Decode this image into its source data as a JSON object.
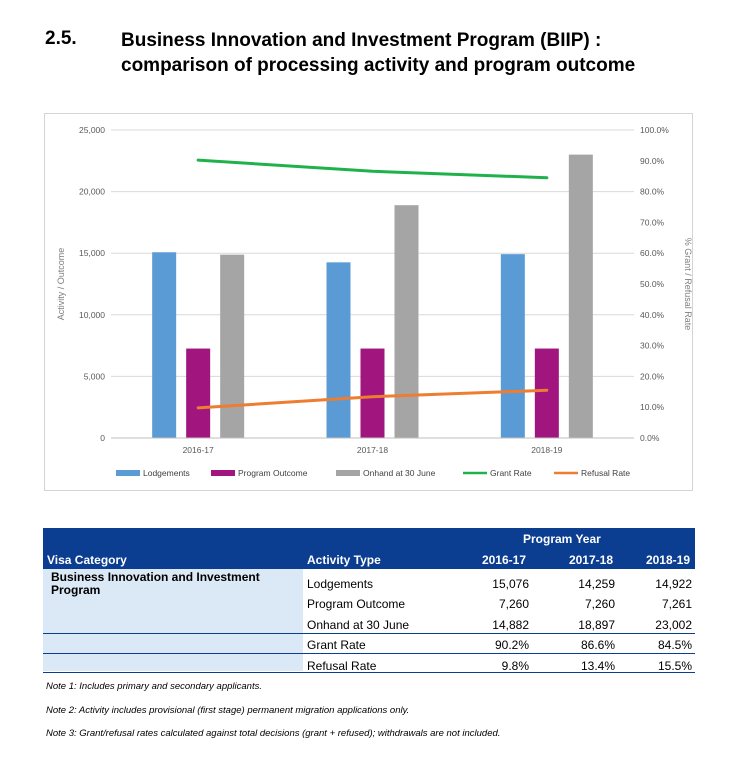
{
  "section": {
    "number": "2.5.",
    "title_line1": "Business Innovation and Investment Program (BIIP) :",
    "title_line2": "comparison of processing activity and program outcome"
  },
  "chart_data": {
    "type": "bar",
    "categories": [
      "2016-17",
      "2017-18",
      "2018-19"
    ],
    "series": [
      {
        "name": "Lodgements",
        "kind": "bar",
        "axis": "left",
        "color": "#5b9bd5",
        "values": [
          15076,
          14259,
          14922
        ]
      },
      {
        "name": "Program Outcome",
        "kind": "bar",
        "axis": "left",
        "color": "#a0157e",
        "values": [
          7260,
          7260,
          7261
        ]
      },
      {
        "name": "Onhand at 30 June",
        "kind": "bar",
        "axis": "left",
        "color": "#a5a5a5",
        "values": [
          14882,
          18897,
          23002
        ]
      },
      {
        "name": "Grant Rate",
        "kind": "line",
        "axis": "right",
        "color": "#1fb24a",
        "values": [
          90.2,
          86.6,
          84.5
        ]
      },
      {
        "name": "Refusal Rate",
        "kind": "line",
        "axis": "right",
        "color": "#ed7d31",
        "values": [
          9.8,
          13.4,
          15.5
        ]
      }
    ],
    "ylabel": "Activity / Outcome",
    "y2label": "% Grant / Refusal Rate",
    "ylim": [
      0,
      25000
    ],
    "y2lim": [
      0,
      100
    ],
    "yticks": [
      "0",
      "5,000",
      "10,000",
      "15,000",
      "20,000",
      "25,000"
    ],
    "y2ticks": [
      "0.0%",
      "10.0%",
      "20.0%",
      "30.0%",
      "40.0%",
      "50.0%",
      "60.0%",
      "70.0%",
      "80.0%",
      "90.0%",
      "100.0%"
    ],
    "grid": true,
    "legend_position": "bottom"
  },
  "table": {
    "group_header": "Program Year",
    "col_category": "Visa Category",
    "col_activity": "Activity Type",
    "years": [
      "2016-17",
      "2017-18",
      "2018-19"
    ],
    "category": "Business Innovation and Investment Program",
    "rows": [
      {
        "activity": "Lodgements",
        "values": [
          "15,076",
          "14,259",
          "14,922"
        ]
      },
      {
        "activity": "Program Outcome",
        "values": [
          "7,260",
          "7,260",
          "7,261"
        ]
      },
      {
        "activity": "Onhand at 30 June",
        "values": [
          "14,882",
          "18,897",
          "23,002"
        ]
      },
      {
        "activity": "Grant Rate",
        "values": [
          "90.2%",
          "86.6%",
          "84.5%"
        ]
      },
      {
        "activity": "Refusal Rate",
        "values": [
          "9.8%",
          "13.4%",
          "15.5%"
        ]
      }
    ]
  },
  "notes": [
    "Note 1: Includes primary and secondary applicants.",
    "Note 2: Activity includes provisional (first stage) permanent migration applications only.",
    "Note 3: Grant/refusal rates calculated against total decisions (grant + refused); withdrawals are not included."
  ]
}
